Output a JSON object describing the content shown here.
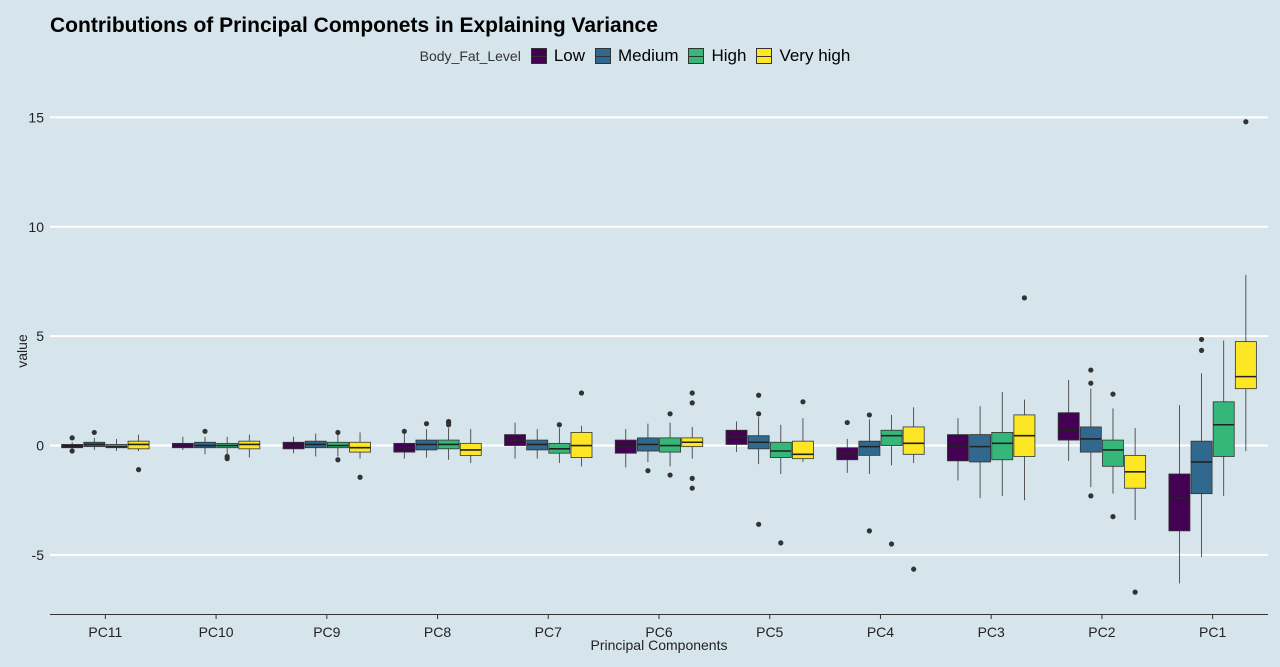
{
  "chart_data": {
    "type": "box",
    "title": "Contributions of Principal Componets in Explaining Variance",
    "xlabel": "Principal Components",
    "ylabel": "value",
    "ylim": [
      -7.7,
      16.8
    ],
    "yticks": [
      -5,
      0,
      5,
      10,
      15
    ],
    "grid": "horizontal",
    "legend_placement": "top",
    "legend_title": "Body_Fat_Level",
    "categories": [
      "PC11",
      "PC10",
      "PC9",
      "PC8",
      "PC7",
      "PC6",
      "PC5",
      "PC4",
      "PC3",
      "PC2",
      "PC1"
    ],
    "series": [
      {
        "name": "Low",
        "color": "#440154",
        "boxes": [
          {
            "lower": -0.2,
            "q1": -0.1,
            "median": -0.05,
            "q3": 0.05,
            "upper": 0.15,
            "outliers": [
              0.35,
              -0.25
            ]
          },
          {
            "lower": -0.2,
            "q1": -0.1,
            "median": 0.0,
            "q3": 0.1,
            "upper": 0.4,
            "outliers": []
          },
          {
            "lower": -0.35,
            "q1": -0.15,
            "median": 0.0,
            "q3": 0.15,
            "upper": 0.4,
            "outliers": []
          },
          {
            "lower": -0.6,
            "q1": -0.3,
            "median": -0.1,
            "q3": 0.1,
            "upper": 0.6,
            "outliers": [
              0.65
            ]
          },
          {
            "lower": -0.6,
            "q1": 0.0,
            "median": 0.25,
            "q3": 0.5,
            "upper": 1.05,
            "outliers": []
          },
          {
            "lower": -1.0,
            "q1": -0.35,
            "median": -0.05,
            "q3": 0.25,
            "upper": 0.75,
            "outliers": []
          },
          {
            "lower": -0.3,
            "q1": 0.05,
            "median": 0.4,
            "q3": 0.7,
            "upper": 1.1,
            "outliers": []
          },
          {
            "lower": -1.25,
            "q1": -0.65,
            "median": -0.4,
            "q3": -0.1,
            "upper": 0.3,
            "outliers": [
              1.05
            ]
          },
          {
            "lower": -1.6,
            "q1": -0.7,
            "median": -0.05,
            "q3": 0.5,
            "upper": 1.25,
            "outliers": []
          },
          {
            "lower": -0.7,
            "q1": 0.25,
            "median": 0.7,
            "q3": 1.5,
            "upper": 3.0,
            "outliers": []
          },
          {
            "lower": -6.3,
            "q1": -3.9,
            "median": -2.4,
            "q3": -1.3,
            "upper": 1.85,
            "outliers": []
          }
        ]
      },
      {
        "name": "Medium",
        "color": "#31688e",
        "boxes": [
          {
            "lower": -0.2,
            "q1": -0.05,
            "median": 0.05,
            "q3": 0.15,
            "upper": 0.35,
            "outliers": [
              0.6
            ]
          },
          {
            "lower": -0.4,
            "q1": -0.1,
            "median": 0.0,
            "q3": 0.15,
            "upper": 0.4,
            "outliers": [
              0.65
            ]
          },
          {
            "lower": -0.5,
            "q1": -0.1,
            "median": 0.05,
            "q3": 0.2,
            "upper": 0.55,
            "outliers": []
          },
          {
            "lower": -0.55,
            "q1": -0.2,
            "median": 0.05,
            "q3": 0.25,
            "upper": 0.75,
            "outliers": [
              1.0
            ]
          },
          {
            "lower": -0.6,
            "q1": -0.2,
            "median": 0.05,
            "q3": 0.25,
            "upper": 0.75,
            "outliers": []
          },
          {
            "lower": -0.75,
            "q1": -0.25,
            "median": 0.05,
            "q3": 0.35,
            "upper": 1.0,
            "outliers": [
              -1.15
            ]
          },
          {
            "lower": -0.85,
            "q1": -0.15,
            "median": 0.15,
            "q3": 0.45,
            "upper": 1.3,
            "outliers": [
              2.3,
              1.45,
              -3.6
            ]
          },
          {
            "lower": -1.3,
            "q1": -0.45,
            "median": -0.05,
            "q3": 0.2,
            "upper": 1.2,
            "outliers": [
              1.4,
              -3.9
            ]
          },
          {
            "lower": -2.4,
            "q1": -0.75,
            "median": -0.05,
            "q3": 0.5,
            "upper": 1.8,
            "outliers": []
          },
          {
            "lower": -1.9,
            "q1": -0.3,
            "median": 0.3,
            "q3": 0.85,
            "upper": 2.6,
            "outliers": [
              3.45,
              2.85,
              -2.3
            ]
          },
          {
            "lower": -5.1,
            "q1": -2.2,
            "median": -0.75,
            "q3": 0.2,
            "upper": 3.3,
            "outliers": [
              4.85,
              4.35
            ]
          }
        ]
      },
      {
        "name": "High",
        "color": "#35b779",
        "boxes": [
          {
            "lower": -0.25,
            "q1": -0.1,
            "median": -0.05,
            "q3": 0.05,
            "upper": 0.3,
            "outliers": []
          },
          {
            "lower": -0.5,
            "q1": -0.1,
            "median": 0.0,
            "q3": 0.1,
            "upper": 0.4,
            "outliers": [
              -0.5,
              -0.6
            ]
          },
          {
            "lower": -0.5,
            "q1": -0.1,
            "median": 0.0,
            "q3": 0.15,
            "upper": 0.5,
            "outliers": [
              0.6,
              -0.65
            ]
          },
          {
            "lower": -0.65,
            "q1": -0.15,
            "median": 0.05,
            "q3": 0.25,
            "upper": 0.8,
            "outliers": [
              1.1,
              1.05,
              0.95
            ]
          },
          {
            "lower": -0.8,
            "q1": -0.35,
            "median": -0.15,
            "q3": 0.1,
            "upper": 0.8,
            "outliers": [
              0.95
            ]
          },
          {
            "lower": -0.95,
            "q1": -0.3,
            "median": 0.0,
            "q3": 0.35,
            "upper": 1.05,
            "outliers": [
              1.45,
              -1.35
            ]
          },
          {
            "lower": -1.3,
            "q1": -0.55,
            "median": -0.25,
            "q3": 0.15,
            "upper": 0.95,
            "outliers": [
              -4.45
            ]
          },
          {
            "lower": -0.9,
            "q1": 0.0,
            "median": 0.45,
            "q3": 0.7,
            "upper": 1.4,
            "outliers": [
              -4.5
            ]
          },
          {
            "lower": -2.3,
            "q1": -0.65,
            "median": 0.1,
            "q3": 0.6,
            "upper": 2.45,
            "outliers": []
          },
          {
            "lower": -2.2,
            "q1": -0.95,
            "median": -0.2,
            "q3": 0.25,
            "upper": 1.7,
            "outliers": [
              2.35,
              -3.25
            ]
          },
          {
            "lower": -2.3,
            "q1": -0.5,
            "median": 0.95,
            "q3": 2.0,
            "upper": 4.8,
            "outliers": []
          }
        ]
      },
      {
        "name": "Very high",
        "color": "#fde725",
        "boxes": [
          {
            "lower": -0.25,
            "q1": -0.15,
            "median": 0.05,
            "q3": 0.2,
            "upper": 0.5,
            "outliers": [
              -1.1
            ]
          },
          {
            "lower": -0.55,
            "q1": -0.15,
            "median": 0.05,
            "q3": 0.2,
            "upper": 0.5,
            "outliers": []
          },
          {
            "lower": -0.6,
            "q1": -0.3,
            "median": -0.1,
            "q3": 0.15,
            "upper": 0.6,
            "outliers": [
              -1.45
            ]
          },
          {
            "lower": -0.8,
            "q1": -0.45,
            "median": -0.2,
            "q3": 0.1,
            "upper": 0.75,
            "outliers": []
          },
          {
            "lower": -0.95,
            "q1": -0.55,
            "median": 0.0,
            "q3": 0.6,
            "upper": 0.9,
            "outliers": [
              2.4
            ]
          },
          {
            "lower": -0.6,
            "q1": -0.05,
            "median": 0.15,
            "q3": 0.35,
            "upper": 0.85,
            "outliers": [
              2.4,
              1.95,
              -1.5,
              -1.95
            ]
          },
          {
            "lower": -0.75,
            "q1": -0.6,
            "median": -0.4,
            "q3": 0.2,
            "upper": 1.25,
            "outliers": [
              2.0
            ]
          },
          {
            "lower": -0.8,
            "q1": -0.4,
            "median": 0.1,
            "q3": 0.85,
            "upper": 1.75,
            "outliers": [
              -5.65
            ]
          },
          {
            "lower": -2.5,
            "q1": -0.5,
            "median": 0.45,
            "q3": 1.4,
            "upper": 2.1,
            "outliers": [
              6.75
            ]
          },
          {
            "lower": -3.4,
            "q1": -1.95,
            "median": -1.2,
            "q3": -0.45,
            "upper": 0.8,
            "outliers": [
              -6.7
            ]
          },
          {
            "lower": -0.25,
            "q1": 2.6,
            "median": 3.15,
            "q3": 4.75,
            "upper": 7.8,
            "outliers": [
              14.8
            ]
          }
        ]
      }
    ]
  }
}
